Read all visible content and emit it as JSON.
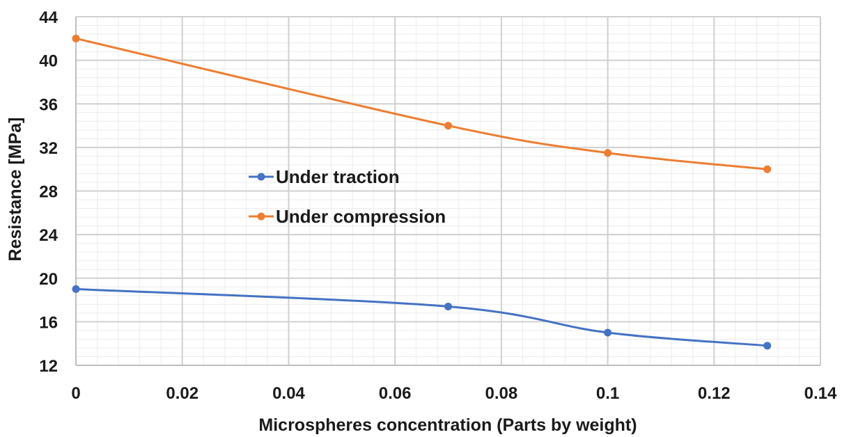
{
  "chart_data": {
    "type": "line",
    "title": "",
    "xlabel": "Microspheres concentration (Parts by weight)",
    "ylabel": "Resistance [MPa]",
    "xlim": [
      0,
      0.14
    ],
    "ylim": [
      12,
      44
    ],
    "x_ticks": [
      "0",
      "0.02",
      "0.04",
      "0.06",
      "0.08",
      "0.1",
      "0.12",
      "0.14"
    ],
    "y_ticks": [
      "12",
      "16",
      "20",
      "24",
      "28",
      "32",
      "36",
      "40",
      "44"
    ],
    "grid": true,
    "minor_grid": true,
    "smooth": true,
    "legend_position": "center-left",
    "series": [
      {
        "name": "Under traction",
        "color": "#4472C4",
        "x": [
          0,
          0.07,
          0.1,
          0.13
        ],
        "values": [
          19,
          17.4,
          15,
          13.8
        ]
      },
      {
        "name": "Under compression",
        "color": "#ED7D31",
        "x": [
          0,
          0.07,
          0.1,
          0.13
        ],
        "values": [
          42,
          34,
          31.5,
          30
        ]
      }
    ]
  }
}
